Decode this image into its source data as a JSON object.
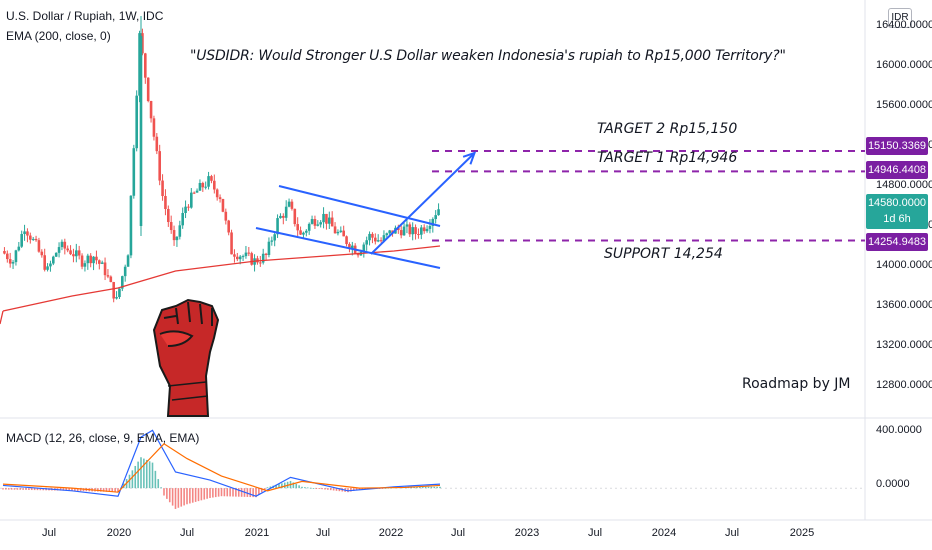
{
  "header": {
    "symbol": "U.S. Dollar / Rupiah, 1W, IDC",
    "ema": "EMA (200, close, 0)",
    "currency_button": "IDR"
  },
  "annotations": {
    "headline": "\"USDIDR: Would Stronger U.S  Dollar weaken Indonesia's rupiah to Rp15,000 Territory?\"",
    "target2": "TARGET 2  Rp15,150",
    "target1": "TARGET 1  Rp14,946",
    "support": "SUPPORT 14,254",
    "byline": "Roadmap by JM"
  },
  "price_axis": {
    "ticks": [
      "16400.0000",
      "16000.0000",
      "15600.0000",
      "15200.0000",
      "14800.0000",
      "14400.0000",
      "14000.0000",
      "13600.0000",
      "13200.0000",
      "12800.0000"
    ],
    "tick_values": [
      16400,
      16000,
      15600,
      15200,
      14800,
      14400,
      14000,
      13600,
      13200,
      12800
    ],
    "tags": {
      "target2": "15150.3369",
      "target1": "14946.4408",
      "current": "14580.0000",
      "current_countdown": "1d 6h",
      "support": "14254.9483"
    }
  },
  "macd_axis": {
    "label": "MACD (12, 26, close, 9, EMA, EMA)",
    "ticks": [
      "400.0000",
      "0.0000"
    ]
  },
  "time_axis": {
    "ticks": [
      "Jul",
      "2020",
      "Jul",
      "2021",
      "Jul",
      "2022",
      "Jul",
      "2023",
      "Jul",
      "2024",
      "Jul",
      "2025"
    ]
  },
  "colors": {
    "up": "#26a69a",
    "down": "#ef5350",
    "ema": "#e53935",
    "trendline": "#2962ff",
    "level": "#8e24aa",
    "macd": "#2962ff",
    "signal": "#ff6d00",
    "fist": "#d32f2f"
  },
  "chart_data": [
    {
      "type": "candlestick",
      "title": "U.S. Dollar / Rupiah, 1W, IDC",
      "ylim": [
        12450,
        16550
      ],
      "x_range": [
        "2019-03",
        "2025-11"
      ],
      "levels": [
        {
          "name": "TARGET 2",
          "value": 15150.3369
        },
        {
          "name": "TARGET 1",
          "value": 14946.4408
        },
        {
          "name": "SUPPORT",
          "value": 14254.9483
        }
      ],
      "last_price": 14580.0,
      "price_path": [
        {
          "x": "2019-03",
          "close": 14150
        },
        {
          "x": "2019-04",
          "close": 14050
        },
        {
          "x": "2019-05",
          "close": 14400
        },
        {
          "x": "2019-06",
          "close": 14200
        },
        {
          "x": "2019-07",
          "close": 13950
        },
        {
          "x": "2019-08",
          "close": 14200
        },
        {
          "x": "2019-09",
          "close": 14150
        },
        {
          "x": "2019-10",
          "close": 14050
        },
        {
          "x": "2019-11",
          "close": 14100
        },
        {
          "x": "2019-12",
          "close": 13950
        },
        {
          "x": "2020-01",
          "close": 13650
        },
        {
          "x": "2020-02",
          "close": 14150
        },
        {
          "x": "2020-03",
          "close": 16300
        },
        {
          "x": "2020-04",
          "close": 15500
        },
        {
          "x": "2020-05",
          "close": 14700
        },
        {
          "x": "2020-06",
          "close": 14200
        },
        {
          "x": "2020-07",
          "close": 14600
        },
        {
          "x": "2020-08",
          "close": 14750
        },
        {
          "x": "2020-09",
          "close": 14850
        },
        {
          "x": "2020-10",
          "close": 14700
        },
        {
          "x": "2020-11",
          "close": 14150
        },
        {
          "x": "2020-12",
          "close": 14100
        },
        {
          "x": "2021-01",
          "close": 14050
        },
        {
          "x": "2021-02",
          "close": 14100
        },
        {
          "x": "2021-03",
          "close": 14450
        },
        {
          "x": "2021-04",
          "close": 14600
        },
        {
          "x": "2021-05",
          "close": 14300
        },
        {
          "x": "2021-06",
          "close": 14450
        },
        {
          "x": "2021-07",
          "close": 14500
        },
        {
          "x": "2021-08",
          "close": 14350
        },
        {
          "x": "2021-09",
          "close": 14250
        },
        {
          "x": "2021-10",
          "close": 14150
        },
        {
          "x": "2021-11",
          "close": 14300
        },
        {
          "x": "2021-12",
          "close": 14250
        },
        {
          "x": "2022-01",
          "close": 14350
        },
        {
          "x": "2022-02",
          "close": 14370
        },
        {
          "x": "2022-03",
          "close": 14330
        },
        {
          "x": "2022-04",
          "close": 14420
        },
        {
          "x": "2022-05",
          "close": 14580
        }
      ],
      "ema200": [
        {
          "x": "2019-03",
          "y": 13550
        },
        {
          "x": "2019-09",
          "y": 13700
        },
        {
          "x": "2020-01",
          "y": 13780
        },
        {
          "x": "2020-06",
          "y": 13950
        },
        {
          "x": "2021-01",
          "y": 14050
        },
        {
          "x": "2021-07",
          "y": 14100
        },
        {
          "x": "2022-01",
          "y": 14150
        },
        {
          "x": "2022-05",
          "y": 14200
        }
      ]
    },
    {
      "type": "histogram",
      "title": "MACD (12, 26, close, 9, EMA, EMA)",
      "ylim": [
        -200,
        520
      ],
      "macd": [
        {
          "x": "2019-03",
          "y": 20
        },
        {
          "x": "2019-09",
          "y": -20
        },
        {
          "x": "2020-01",
          "y": -60
        },
        {
          "x": "2020-03",
          "y": 380
        },
        {
          "x": "2020-04",
          "y": 430
        },
        {
          "x": "2020-06",
          "y": 120
        },
        {
          "x": "2020-09",
          "y": 60
        },
        {
          "x": "2021-01",
          "y": -60
        },
        {
          "x": "2021-04",
          "y": 80
        },
        {
          "x": "2021-09",
          "y": -20
        },
        {
          "x": "2022-01",
          "y": 10
        },
        {
          "x": "2022-05",
          "y": 30
        }
      ],
      "signal": [
        {
          "x": "2019-03",
          "y": 30
        },
        {
          "x": "2019-09",
          "y": 0
        },
        {
          "x": "2020-01",
          "y": -30
        },
        {
          "x": "2020-03",
          "y": 150
        },
        {
          "x": "2020-05",
          "y": 330
        },
        {
          "x": "2020-07",
          "y": 220
        },
        {
          "x": "2020-10",
          "y": 90
        },
        {
          "x": "2021-02",
          "y": -20
        },
        {
          "x": "2021-05",
          "y": 50
        },
        {
          "x": "2021-10",
          "y": 0
        },
        {
          "x": "2022-02",
          "y": 5
        },
        {
          "x": "2022-05",
          "y": 20
        }
      ]
    }
  ]
}
